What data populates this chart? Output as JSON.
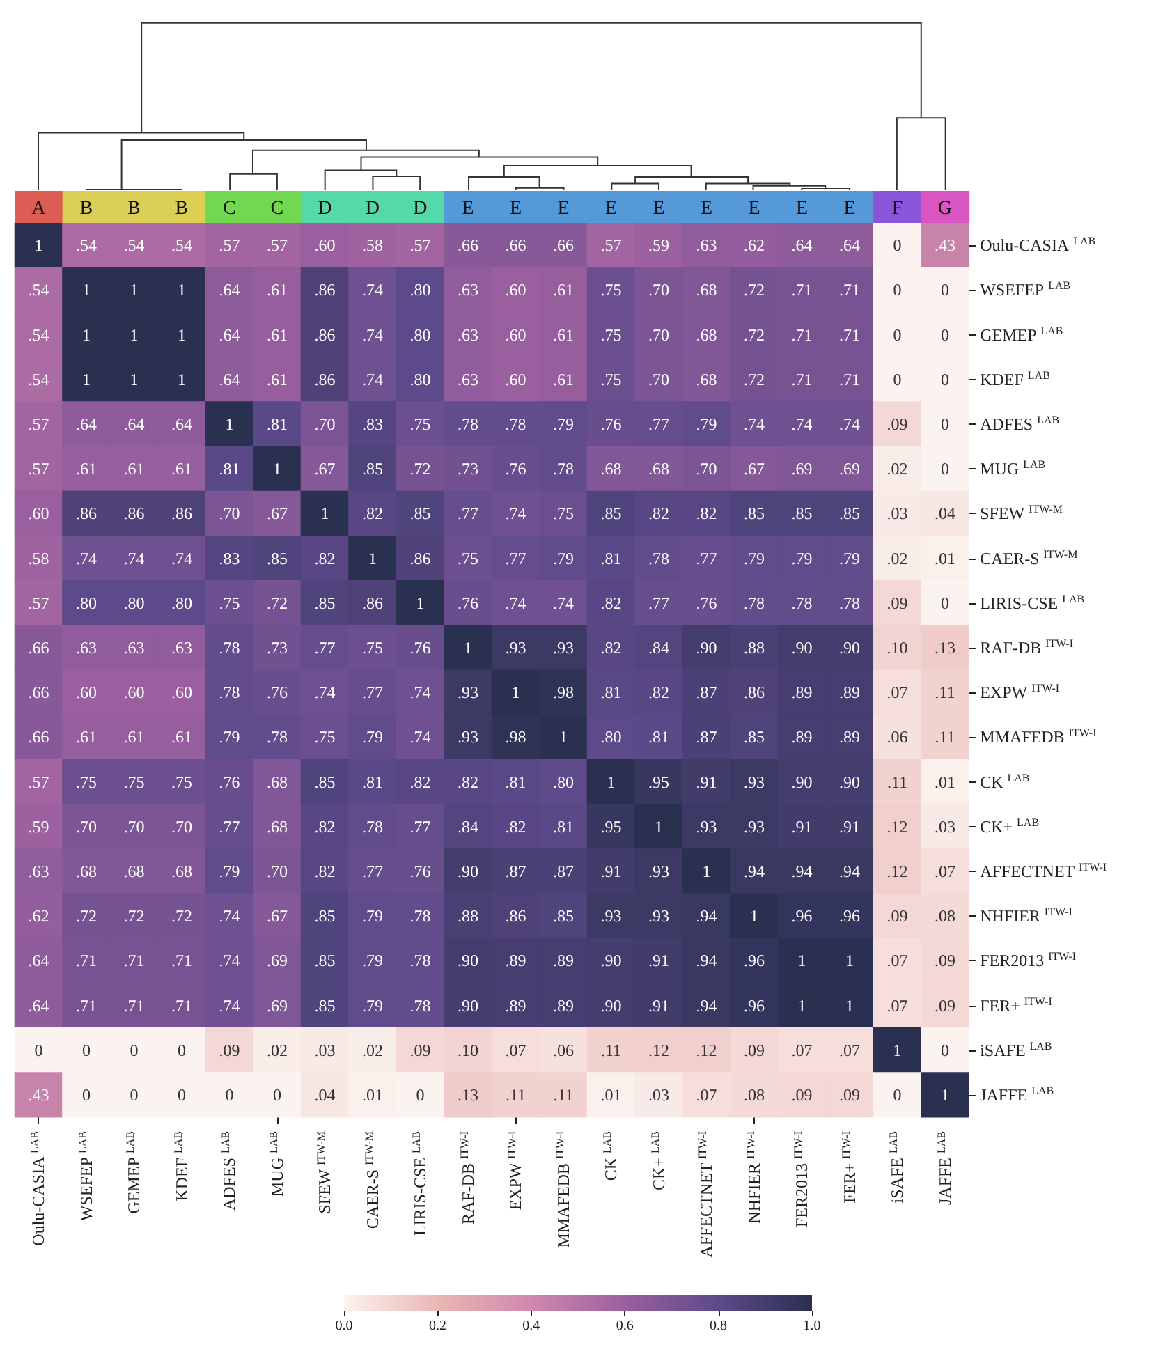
{
  "chart_data": {
    "type": "heatmap",
    "categories": [
      "Oulu-CASIA $^{LAB}$",
      "WSEFEP $^{LAB}$",
      "GEMEP $^{LAB}$",
      "KDEF $^{LAB}$",
      "ADFES $^{LAB}$",
      "MUG $^{LAB}$",
      "SFEW $^{ITW-M}$",
      "CAER-S $^{ITW-M}$",
      "LIRIS-CSE $^{LAB}$",
      "RAF-DB $^{ITW-I}$",
      "EXPW $^{ITW-I}$",
      "MMAFEDB $^{ITW-I}$",
      "CK $^{LAB}$",
      "CK+ $^{LAB}$",
      "AFFECTNET $^{ITW-I}$",
      "NHFIER $^{ITW-I}$",
      "FER2013 $^{ITW-I}$",
      "FER+ $^{ITW-I}$",
      "iSAFE $^{LAB}$",
      "JAFFE $^{LAB}$"
    ],
    "y_categories": [
      "Oulu-CASIA $^{LAB}$",
      "WSEFEP $^{LAB}$",
      "GEMEP $^{LAB}$",
      "KDEF $^{LAB}$",
      "ADFES $^{LAB}$",
      "MUG $^{LAB}$",
      "SFEW $^{ITW-M}$",
      "CAER-S $^{ITW-M}$",
      "LIRIS-CSE $^{LAB}$",
      "RAF-DB $^{ITW-I}$",
      "EXPW $^{ITW-I}$",
      "MMAFEDB $^{ITW-I}$",
      "CK $^{LAB}$",
      "CK+ $^{LAB}$",
      "AFFECTNET $^{ITW-I}$",
      "NHFIER $^{ITW-I}$",
      "FER2013 $^{ITW-I}$",
      "FER+ $^{ITW-I}$",
      "iSAFE $^{LAB}$",
      "JAFFE $^{LAB}$"
    ],
    "cells": [
      [
        1,
        0.54,
        0.54,
        0.54,
        0.57,
        0.57,
        0.6,
        0.58,
        0.57,
        0.66,
        0.66,
        0.66,
        0.57,
        0.59,
        0.63,
        0.62,
        0.64,
        0.64,
        0,
        0.43
      ],
      [
        0.54,
        1,
        1,
        1,
        0.64,
        0.61,
        0.86,
        0.74,
        0.8,
        0.63,
        0.6,
        0.61,
        0.75,
        0.7,
        0.68,
        0.72,
        0.71,
        0.71,
        0,
        0
      ],
      [
        0.54,
        1,
        1,
        1,
        0.64,
        0.61,
        0.86,
        0.74,
        0.8,
        0.63,
        0.6,
        0.61,
        0.75,
        0.7,
        0.68,
        0.72,
        0.71,
        0.71,
        0,
        0
      ],
      [
        0.54,
        1,
        1,
        1,
        0.64,
        0.61,
        0.86,
        0.74,
        0.8,
        0.63,
        0.6,
        0.61,
        0.75,
        0.7,
        0.68,
        0.72,
        0.71,
        0.71,
        0,
        0
      ],
      [
        0.57,
        0.64,
        0.64,
        0.64,
        1,
        0.81,
        0.7,
        0.83,
        0.75,
        0.78,
        0.78,
        0.79,
        0.76,
        0.77,
        0.79,
        0.74,
        0.74,
        0.74,
        0.09,
        0
      ],
      [
        0.57,
        0.61,
        0.61,
        0.61,
        0.81,
        1,
        0.67,
        0.85,
        0.72,
        0.73,
        0.76,
        0.78,
        0.68,
        0.68,
        0.7,
        0.67,
        0.69,
        0.69,
        0.02,
        0
      ],
      [
        0.6,
        0.86,
        0.86,
        0.86,
        0.7,
        0.67,
        1,
        0.82,
        0.85,
        0.77,
        0.74,
        0.75,
        0.85,
        0.82,
        0.82,
        0.85,
        0.85,
        0.85,
        0.03,
        0.04
      ],
      [
        0.58,
        0.74,
        0.74,
        0.74,
        0.83,
        0.85,
        0.82,
        1,
        0.86,
        0.75,
        0.77,
        0.79,
        0.81,
        0.78,
        0.77,
        0.79,
        0.79,
        0.79,
        0.02,
        0.01
      ],
      [
        0.57,
        0.8,
        0.8,
        0.8,
        0.75,
        0.72,
        0.85,
        0.86,
        1,
        0.76,
        0.74,
        0.74,
        0.82,
        0.77,
        0.76,
        0.78,
        0.78,
        0.78,
        0.09,
        0
      ],
      [
        0.66,
        0.63,
        0.63,
        0.63,
        0.78,
        0.73,
        0.77,
        0.75,
        0.76,
        1,
        0.93,
        0.93,
        0.82,
        0.84,
        0.9,
        0.88,
        0.9,
        0.9,
        0.1,
        0.13
      ],
      [
        0.66,
        0.6,
        0.6,
        0.6,
        0.78,
        0.76,
        0.74,
        0.77,
        0.74,
        0.93,
        1,
        0.98,
        0.81,
        0.82,
        0.87,
        0.86,
        0.89,
        0.89,
        0.07,
        0.11
      ],
      [
        0.66,
        0.61,
        0.61,
        0.61,
        0.79,
        0.78,
        0.75,
        0.79,
        0.74,
        0.93,
        0.98,
        1,
        0.8,
        0.81,
        0.87,
        0.85,
        0.89,
        0.89,
        0.06,
        0.11
      ],
      [
        0.57,
        0.75,
        0.75,
        0.75,
        0.76,
        0.68,
        0.85,
        0.81,
        0.82,
        0.82,
        0.81,
        0.8,
        1,
        0.95,
        0.91,
        0.93,
        0.9,
        0.9,
        0.11,
        0.01
      ],
      [
        0.59,
        0.7,
        0.7,
        0.7,
        0.77,
        0.68,
        0.82,
        0.78,
        0.77,
        0.84,
        0.82,
        0.81,
        0.95,
        1,
        0.93,
        0.93,
        0.91,
        0.91,
        0.12,
        0.03
      ],
      [
        0.63,
        0.68,
        0.68,
        0.68,
        0.79,
        0.7,
        0.82,
        0.77,
        0.76,
        0.9,
        0.87,
        0.87,
        0.91,
        0.93,
        1,
        0.94,
        0.94,
        0.94,
        0.12,
        0.07
      ],
      [
        0.62,
        0.72,
        0.72,
        0.72,
        0.74,
        0.67,
        0.85,
        0.79,
        0.78,
        0.88,
        0.86,
        0.85,
        0.93,
        0.93,
        0.94,
        1,
        0.96,
        0.96,
        0.09,
        0.08
      ],
      [
        0.64,
        0.71,
        0.71,
        0.71,
        0.74,
        0.69,
        0.85,
        0.79,
        0.78,
        0.9,
        0.89,
        0.89,
        0.9,
        0.91,
        0.94,
        0.96,
        1,
        1,
        0.07,
        0.09
      ],
      [
        0.64,
        0.71,
        0.71,
        0.71,
        0.74,
        0.69,
        0.85,
        0.79,
        0.78,
        0.9,
        0.89,
        0.89,
        0.9,
        0.91,
        0.94,
        0.96,
        1,
        1,
        0.07,
        0.09
      ],
      [
        0,
        0,
        0,
        0,
        0.09,
        0.02,
        0.03,
        0.02,
        0.09,
        0.1,
        0.07,
        0.06,
        0.11,
        0.12,
        0.12,
        0.09,
        0.07,
        0.07,
        1,
        0
      ],
      [
        0.43,
        0,
        0,
        0,
        0,
        0,
        0.04,
        0.01,
        0,
        0.13,
        0.11,
        0.11,
        0.01,
        0.03,
        0.07,
        0.08,
        0.09,
        0.09,
        0,
        1
      ]
    ],
    "cell_labels": [
      [
        "1",
        ".54",
        ".54",
        ".54",
        ".57",
        ".57",
        ".60",
        ".58",
        ".57",
        ".66",
        ".66",
        ".66",
        ".57",
        ".59",
        ".63",
        ".62",
        ".64",
        ".64",
        "0",
        ".43"
      ],
      [
        ".54",
        "1",
        "1",
        "1",
        ".64",
        ".61",
        ".86",
        ".74",
        ".80",
        ".63",
        ".60",
        ".61",
        ".75",
        ".70",
        ".68",
        ".72",
        ".71",
        ".71",
        "0",
        "0"
      ],
      [
        ".54",
        "1",
        "1",
        "1",
        ".64",
        ".61",
        ".86",
        ".74",
        ".80",
        ".63",
        ".60",
        ".61",
        ".75",
        ".70",
        ".68",
        ".72",
        ".71",
        ".71",
        "0",
        "0"
      ],
      [
        ".54",
        "1",
        "1",
        "1",
        ".64",
        ".61",
        ".86",
        ".74",
        ".80",
        ".63",
        ".60",
        ".61",
        ".75",
        ".70",
        ".68",
        ".72",
        ".71",
        ".71",
        "0",
        "0"
      ],
      [
        ".57",
        ".64",
        ".64",
        ".64",
        "1",
        ".81",
        ".70",
        ".83",
        ".75",
        ".78",
        ".78",
        ".79",
        ".76",
        ".77",
        ".79",
        ".74",
        ".74",
        ".74",
        ".09",
        "0"
      ],
      [
        ".57",
        ".61",
        ".61",
        ".61",
        ".81",
        "1",
        ".67",
        ".85",
        ".72",
        ".73",
        ".76",
        ".78",
        ".68",
        ".68",
        ".70",
        ".67",
        ".69",
        ".69",
        ".02",
        "0"
      ],
      [
        ".60",
        ".86",
        ".86",
        ".86",
        ".70",
        ".67",
        "1",
        ".82",
        ".85",
        ".77",
        ".74",
        ".75",
        ".85",
        ".82",
        ".82",
        ".85",
        ".85",
        ".85",
        ".03",
        ".04"
      ],
      [
        ".58",
        ".74",
        ".74",
        ".74",
        ".83",
        ".85",
        ".82",
        "1",
        ".86",
        ".75",
        ".77",
        ".79",
        ".81",
        ".78",
        ".77",
        ".79",
        ".79",
        ".79",
        ".02",
        ".01"
      ],
      [
        ".57",
        ".80",
        ".80",
        ".80",
        ".75",
        ".72",
        ".85",
        ".86",
        "1",
        ".76",
        ".74",
        ".74",
        ".82",
        ".77",
        ".76",
        ".78",
        ".78",
        ".78",
        ".09",
        "0"
      ],
      [
        ".66",
        ".63",
        ".63",
        ".63",
        ".78",
        ".73",
        ".77",
        ".75",
        ".76",
        "1",
        ".93",
        ".93",
        ".82",
        ".84",
        ".90",
        ".88",
        ".90",
        ".90",
        ".10",
        ".13"
      ],
      [
        ".66",
        ".60",
        ".60",
        ".60",
        ".78",
        ".76",
        ".74",
        ".77",
        ".74",
        ".93",
        "1",
        ".98",
        ".81",
        ".82",
        ".87",
        ".86",
        ".89",
        ".89",
        ".07",
        ".11"
      ],
      [
        ".66",
        ".61",
        ".61",
        ".61",
        ".79",
        ".78",
        ".75",
        ".79",
        ".74",
        ".93",
        ".98",
        "1",
        ".80",
        ".81",
        ".87",
        ".85",
        ".89",
        ".89",
        ".06",
        ".11"
      ],
      [
        ".57",
        ".75",
        ".75",
        ".75",
        ".76",
        ".68",
        ".85",
        ".81",
        ".82",
        ".82",
        ".81",
        ".80",
        "1",
        ".95",
        ".91",
        ".93",
        ".90",
        ".90",
        ".11",
        ".01"
      ],
      [
        ".59",
        ".70",
        ".70",
        ".70",
        ".77",
        ".68",
        ".82",
        ".78",
        ".77",
        ".84",
        ".82",
        ".81",
        ".95",
        "1",
        ".93",
        ".93",
        ".91",
        ".91",
        ".12",
        ".03"
      ],
      [
        ".63",
        ".68",
        ".68",
        ".68",
        ".79",
        ".70",
        ".82",
        ".77",
        ".76",
        ".90",
        ".87",
        ".87",
        ".91",
        ".93",
        "1",
        ".94",
        ".94",
        ".94",
        ".12",
        ".07"
      ],
      [
        ".62",
        ".72",
        ".72",
        ".72",
        ".74",
        ".67",
        ".85",
        ".79",
        ".78",
        ".88",
        ".86",
        ".85",
        ".93",
        ".93",
        ".94",
        "1",
        ".96",
        ".96",
        ".09",
        ".08"
      ],
      [
        ".64",
        ".71",
        ".71",
        ".71",
        ".74",
        ".69",
        ".85",
        ".79",
        ".78",
        ".90",
        ".89",
        ".89",
        ".90",
        ".91",
        ".94",
        ".96",
        "1",
        "1",
        ".07",
        ".09"
      ],
      [
        ".64",
        ".71",
        ".71",
        ".71",
        ".74",
        ".69",
        ".85",
        ".79",
        ".78",
        ".90",
        ".89",
        ".89",
        ".90",
        ".91",
        ".94",
        ".96",
        "1",
        "1",
        ".07",
        ".09"
      ],
      [
        "0",
        "0",
        "0",
        "0",
        ".09",
        ".02",
        ".03",
        ".02",
        ".09",
        ".10",
        ".07",
        ".06",
        ".11",
        ".12",
        ".12",
        ".09",
        ".07",
        ".07",
        "1",
        "0"
      ],
      [
        ".43",
        "0",
        "0",
        "0",
        "0",
        "0",
        ".04",
        ".01",
        "0",
        ".13",
        ".11",
        ".11",
        ".01",
        ".03",
        ".07",
        ".08",
        ".09",
        ".09",
        "0",
        "1"
      ]
    ],
    "clim": [
      0,
      1
    ],
    "cticks": [
      {
        "value": 0,
        "label": "0.0"
      },
      {
        "value": 0.2,
        "label": "0.2"
      },
      {
        "value": 0.4,
        "label": "0.4"
      },
      {
        "value": 0.6,
        "label": "0.6"
      },
      {
        "value": 0.8,
        "label": "0.8"
      },
      {
        "value": 1,
        "label": "1.0"
      }
    ],
    "annotations": [
      {
        "text": "A",
        "x": "Oulu-CASIA $^{LAB}$"
      },
      {
        "text": "B",
        "x": "WSEFEP $^{LAB}$"
      },
      {
        "text": "B",
        "x": "GEMEP $^{LAB}$"
      },
      {
        "text": "B",
        "x": "KDEF $^{LAB}$"
      },
      {
        "text": "C",
        "x": "ADFES $^{LAB}$"
      },
      {
        "text": "C",
        "x": "MUG $^{LAB}$"
      },
      {
        "text": "D",
        "x": "SFEW $^{ITW-M}$"
      },
      {
        "text": "D",
        "x": "CAER-S $^{ITW-M}$"
      },
      {
        "text": "D",
        "x": "LIRIS-CSE $^{LAB}$"
      },
      {
        "text": "E",
        "x": "RAF-DB $^{ITW-I}$"
      },
      {
        "text": "E",
        "x": "EXPW $^{ITW-I}$"
      },
      {
        "text": "E",
        "x": "MMAFEDB $^{ITW-I}$"
      },
      {
        "text": "E",
        "x": "CK $^{LAB}$"
      },
      {
        "text": "E",
        "x": "CK+ $^{LAB}$"
      },
      {
        "text": "E",
        "x": "AFFECTNET $^{ITW-I}$"
      },
      {
        "text": "E",
        "x": "NHFIER $^{ITW-I}$"
      },
      {
        "text": "E",
        "x": "FER2013 $^{ITW-I}$"
      },
      {
        "text": "E",
        "x": "FER+ $^{ITW-I}$"
      },
      {
        "text": "F",
        "x": "iSAFE $^{LAB}$"
      },
      {
        "text": "G",
        "x": "JAFFE $^{LAB}$"
      }
    ]
  }
}
